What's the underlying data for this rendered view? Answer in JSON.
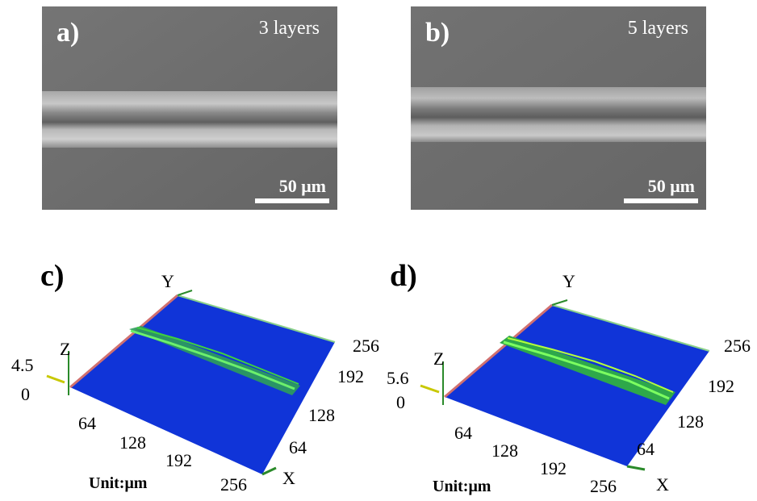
{
  "panels": {
    "a": {
      "letter": "a)",
      "layers": "3 layers",
      "scale": "50 μm"
    },
    "b": {
      "letter": "b)",
      "layers": "5 layers",
      "scale": "50 μm"
    },
    "c": {
      "letter": "c)",
      "axis_y": "Y",
      "axis_z": "Z",
      "axis_x": "X",
      "z_max": "4.5",
      "z_min": "0",
      "x_ticks": [
        "64",
        "128",
        "192",
        "256"
      ],
      "y_ticks": [
        "64",
        "128",
        "192",
        "256"
      ],
      "unit": "Unit:μm"
    },
    "d": {
      "letter": "d)",
      "axis_y": "Y",
      "axis_z": "Z",
      "axis_x": "X",
      "z_max": "5.6",
      "z_min": "0",
      "x_ticks": [
        "64",
        "128",
        "192",
        "256"
      ],
      "y_ticks": [
        "64",
        "128",
        "192",
        "256"
      ],
      "unit": "Unit:μm"
    }
  },
  "colors": {
    "sem_background": "#6d6d6d",
    "plane_blue": "#1034d8",
    "line_green": "#3fe040",
    "axis_green": "#2a8a2a"
  }
}
